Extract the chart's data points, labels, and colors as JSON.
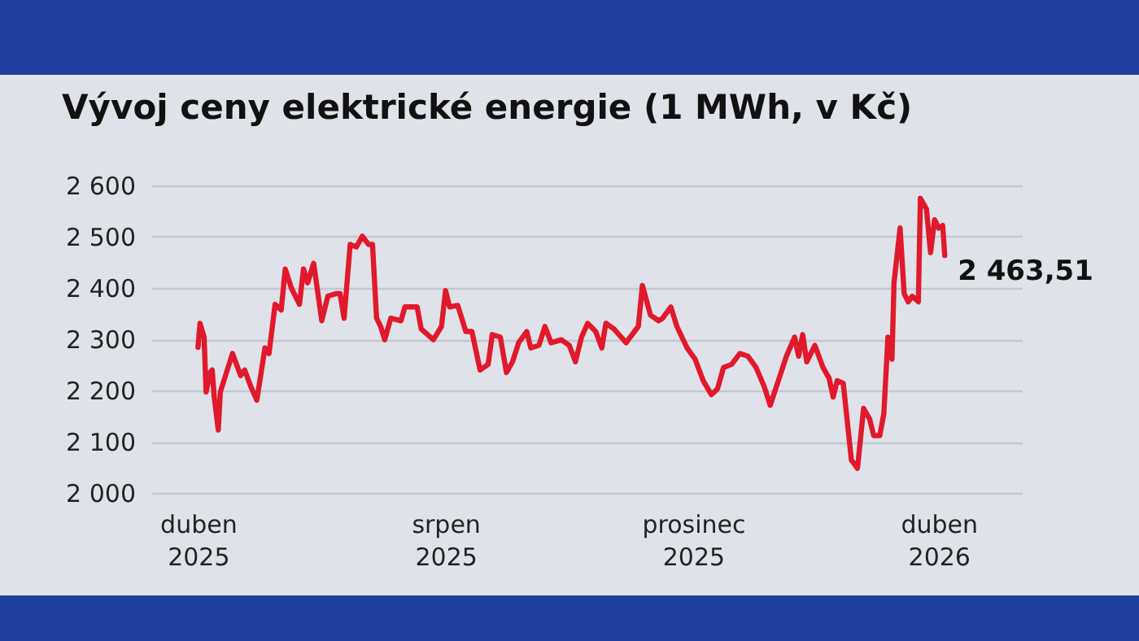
{
  "chart_data": {
    "type": "line",
    "title": "Vývoj ceny elektrické energie (1 MWh, v Kč)",
    "x": [
      "2025-04-01",
      "2025-04-02",
      "2025-04-04",
      "2025-04-05",
      "2025-04-07",
      "2025-04-08",
      "2025-04-09",
      "2025-04-11",
      "2025-04-12",
      "2025-04-18",
      "2025-04-22",
      "2025-04-24",
      "2025-04-27",
      "2025-04-30",
      "2025-05-04",
      "2025-05-06",
      "2025-05-09",
      "2025-05-12",
      "2025-05-14",
      "2025-05-17",
      "2025-05-21",
      "2025-05-23",
      "2025-05-25",
      "2025-05-28",
      "2025-06-01",
      "2025-06-04",
      "2025-06-08",
      "2025-06-10",
      "2025-06-12",
      "2025-06-15",
      "2025-06-18",
      "2025-06-21",
      "2025-06-24",
      "2025-06-26",
      "2025-06-28",
      "2025-06-30",
      "2025-07-02",
      "2025-07-05",
      "2025-07-10",
      "2025-07-12",
      "2025-07-18",
      "2025-07-20",
      "2025-07-26",
      "2025-07-30",
      "2025-08-01",
      "2025-08-03",
      "2025-08-07",
      "2025-08-11",
      "2025-08-14",
      "2025-08-18",
      "2025-08-22",
      "2025-08-24",
      "2025-08-28",
      "2025-08-31",
      "2025-09-03",
      "2025-09-06",
      "2025-09-10",
      "2025-09-12",
      "2025-09-16",
      "2025-09-19",
      "2025-09-22",
      "2025-09-27",
      "2025-10-01",
      "2025-10-04",
      "2025-10-07",
      "2025-10-10",
      "2025-10-14",
      "2025-10-17",
      "2025-10-19",
      "2025-10-23",
      "2025-10-29",
      "2025-10-31",
      "2025-11-04",
      "2025-11-06",
      "2025-11-10",
      "2025-11-14",
      "2025-11-16",
      "2025-11-20",
      "2025-11-23",
      "2025-11-28",
      "2025-12-02",
      "2025-12-06",
      "2025-12-10",
      "2025-12-13",
      "2025-12-16",
      "2025-12-20",
      "2025-12-24",
      "2025-12-28",
      "2026-01-01",
      "2026-01-05",
      "2026-01-08",
      "2026-01-12",
      "2026-01-16",
      "2026-01-20",
      "2026-01-22",
      "2026-01-24",
      "2026-01-26",
      "2026-01-30",
      "2026-02-03",
      "2026-02-06",
      "2026-02-08",
      "2026-02-10",
      "2026-02-13",
      "2026-02-14",
      "2026-02-17",
      "2026-02-20",
      "2026-02-23",
      "2026-02-26",
      "2026-02-28",
      "2026-03-03",
      "2026-03-05",
      "2026-03-07",
      "2026-03-09",
      "2026-03-10",
      "2026-03-13",
      "2026-03-15",
      "2026-03-17",
      "2026-03-19",
      "2026-03-22",
      "2026-03-23",
      "2026-03-26",
      "2026-03-28",
      "2026-03-30",
      "2026-04-01",
      "2026-04-03",
      "2026-04-04"
    ],
    "series": [
      {
        "color": "#e0192d",
        "values": [
          2284,
          2331,
          2304,
          2197,
          2235,
          2240,
          2187,
          2123,
          2197,
          2272,
          2229,
          2240,
          2208,
          2181,
          2283,
          2272,
          2368,
          2357,
          2437,
          2400,
          2368,
          2437,
          2410,
          2448,
          2336,
          2384,
          2389,
          2389,
          2341,
          2485,
          2480,
          2501,
          2485,
          2485,
          2341,
          2325,
          2299,
          2341,
          2336,
          2363,
          2363,
          2320,
          2299,
          2325,
          2395,
          2363,
          2366,
          2315,
          2315,
          2240,
          2251,
          2309,
          2304,
          2235,
          2256,
          2293,
          2315,
          2283,
          2288,
          2325,
          2293,
          2299,
          2288,
          2256,
          2304,
          2331,
          2315,
          2283,
          2331,
          2320,
          2293,
          2304,
          2325,
          2405,
          2347,
          2336,
          2341,
          2363,
          2325,
          2283,
          2261,
          2219,
          2192,
          2203,
          2245,
          2251,
          2272,
          2267,
          2245,
          2208,
          2171,
          2219,
          2267,
          2304,
          2267,
          2309,
          2256,
          2288,
          2245,
          2224,
          2187,
          2219,
          2214,
          2176,
          2064,
          2048,
          2165,
          2144,
          2112,
          2112,
          2155,
          2304,
          2261,
          2410,
          2517,
          2389,
          2373,
          2384,
          2373,
          2575,
          2554,
          2469,
          2533,
          2517,
          2522,
          2463.51
        ]
      }
    ],
    "xlim": [
      "2025-03-09",
      "2026-05-12"
    ],
    "xticks": [
      {
        "value": "2025-04-01",
        "label": "duben\n2025"
      },
      {
        "value": "2025-08-01",
        "label": "srpen\n2025"
      },
      {
        "value": "2025-12-01",
        "label": "prosinec\n2025"
      },
      {
        "value": "2026-04-01",
        "label": "duben\n2026"
      }
    ],
    "ylim": [
      2000,
      2600
    ],
    "yticks": [
      {
        "value": 2000,
        "label": "2 000"
      },
      {
        "value": 2100,
        "label": "2 100"
      },
      {
        "value": 2200,
        "label": "2 200"
      },
      {
        "value": 2300,
        "label": "2 300"
      },
      {
        "value": 2400,
        "label": "2 400"
      },
      {
        "value": 2500,
        "label": "2 500"
      },
      {
        "value": 2600,
        "label": "2 600"
      }
    ],
    "grid": "y",
    "annotations": [
      {
        "text": "2 463,51",
        "x": "2026-04-04",
        "y": 2463.51
      }
    ]
  }
}
